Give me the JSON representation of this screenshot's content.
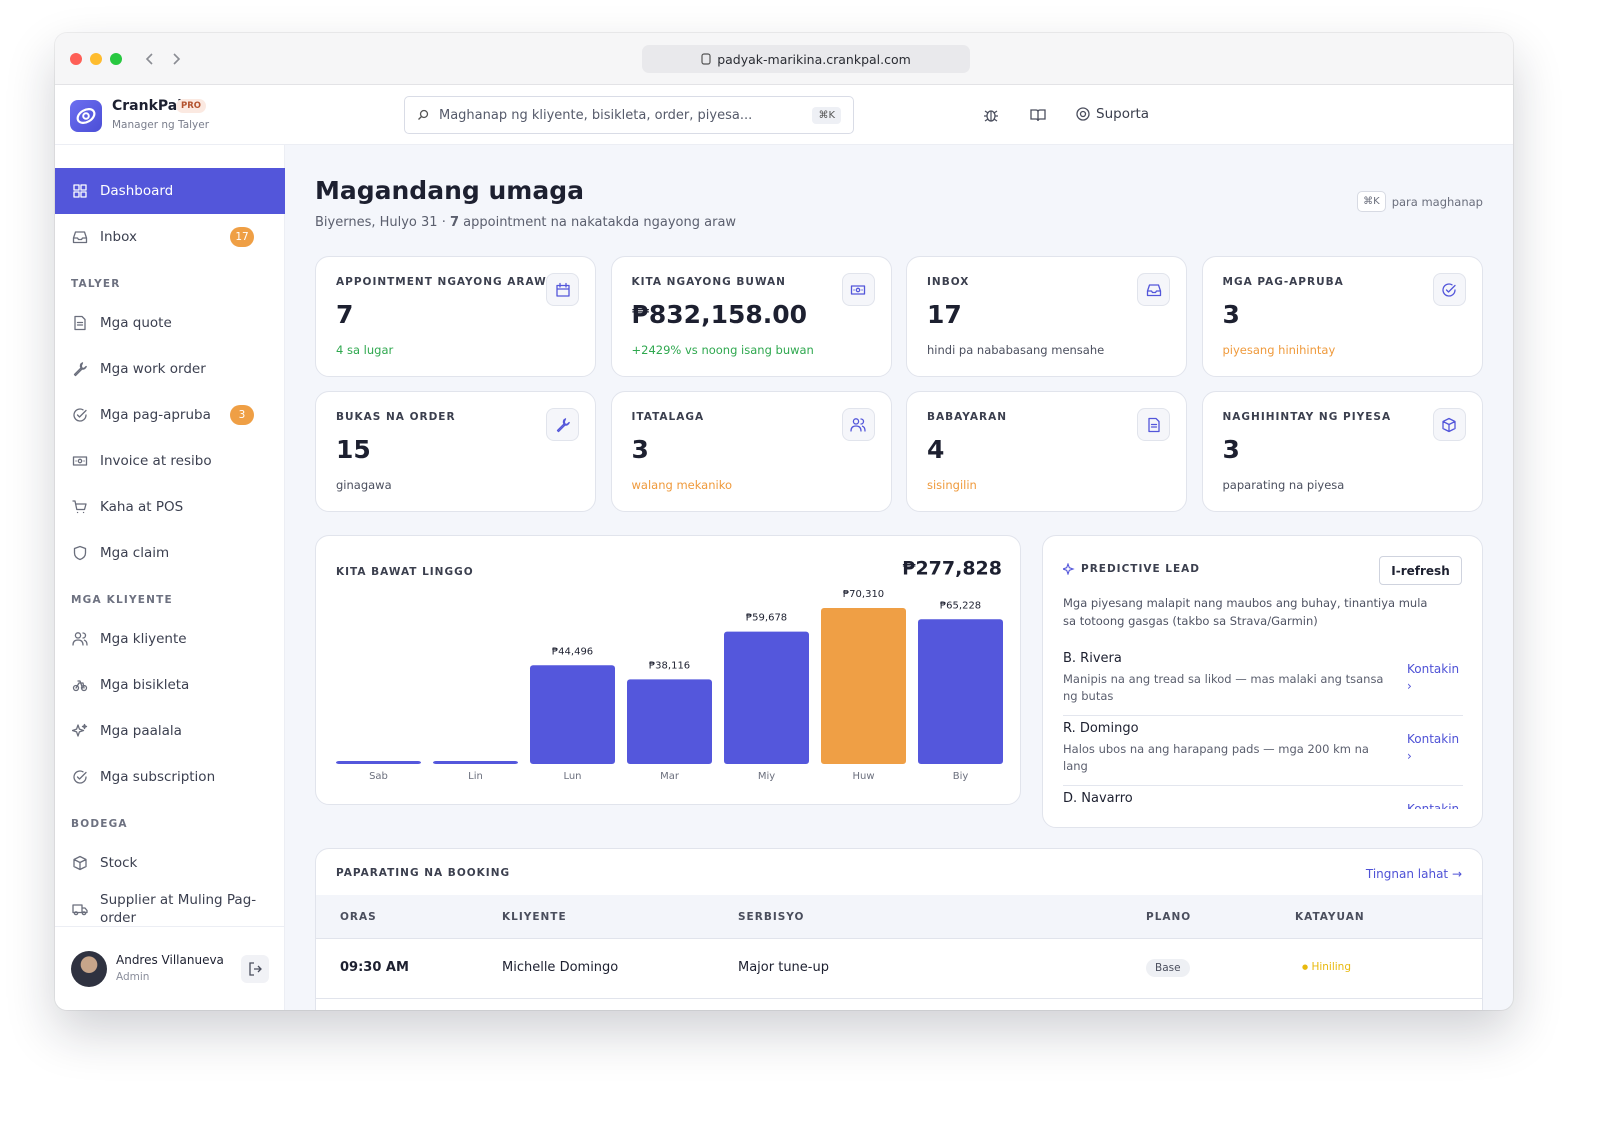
{
  "browser": {
    "url": "padyak-marikina.crankpal.com"
  },
  "brand": {
    "name": "CrankPal",
    "badge": "PRO",
    "subtitle": "Manager ng Talyer"
  },
  "search": {
    "placeholder": "Maghanap ng kliyente, bisikleta, order, piyesa...",
    "shortcut": "⌘K"
  },
  "topbar": {
    "support": "Suporta"
  },
  "sidebar": {
    "main": [
      {
        "label": "Dashboard"
      },
      {
        "label": "Inbox",
        "badge": 17
      }
    ],
    "sections": [
      {
        "title": "TALYER",
        "items": [
          {
            "label": "Mga quote"
          },
          {
            "label": "Mga work order"
          },
          {
            "label": "Mga pag-apruba",
            "badge": 3
          },
          {
            "label": "Invoice at resibo"
          },
          {
            "label": "Kaha at POS"
          },
          {
            "label": "Mga claim"
          }
        ]
      },
      {
        "title": "MGA KLIYENTE",
        "items": [
          {
            "label": "Mga kliyente"
          },
          {
            "label": "Mga bisikleta"
          },
          {
            "label": "Mga paalala"
          },
          {
            "label": "Mga subscription"
          }
        ]
      },
      {
        "title": "BODEGA",
        "items": [
          {
            "label": "Stock"
          },
          {
            "label": "Supplier at Muling Pag-order"
          }
        ]
      }
    ]
  },
  "user": {
    "name": "Andres Villanueva",
    "role": "Admin"
  },
  "header": {
    "title": "Magandang umaga",
    "date": "Biyernes, Hulyo 31 ·",
    "appointments": 7,
    "subtitle": "appointment na nakatakda ngayong araw",
    "shortcut": "⌘K",
    "shortcut_hint": "para maghanap"
  },
  "stats": [
    {
      "label": "APPOINTMENT NGAYONG ARAW",
      "value": 7,
      "note": "4 sa lugar",
      "note_color": "#2fa84f"
    },
    {
      "label": "KITA NGAYONG BUWAN",
      "value": "₱832,158.00",
      "note": "+2429% vs noong isang buwan",
      "note_color": "#2fa84f"
    },
    {
      "label": "INBOX",
      "value": 17,
      "note": "hindi pa nababasang mensahe",
      "note_color": "#4b4f5e"
    },
    {
      "label": "MGA PAG-APRUBA",
      "value": 3,
      "note": "piyesang hinihintay",
      "note_color": "#ef9a3c"
    },
    {
      "label": "BUKAS NA ORDER",
      "value": 15,
      "note": "ginagawa",
      "note_color": "#4b4f5e"
    },
    {
      "label": "ITATALAGA",
      "value": 3,
      "note": "walang mekaniko",
      "note_color": "#ef9a3c"
    },
    {
      "label": "BABAYARAN",
      "value": 4,
      "note": "sisingilin",
      "note_color": "#ef9a3c"
    },
    {
      "label": "NAGHIHINTAY NG PIYESA",
      "value": 3,
      "note": "paparating na piyesa",
      "note_color": "#4b4f5e"
    }
  ],
  "chart_data": {
    "type": "bar",
    "title": "KITA BAWAT LINGGO",
    "total": "₱277,828",
    "categories": [
      "Sab",
      "Lin",
      "Lun",
      "Mar",
      "Miy",
      "Huw",
      "Biy"
    ],
    "values": [
      0,
      0,
      44496,
      38116,
      59678,
      70310,
      65228
    ],
    "value_labels": [
      null,
      null,
      "₱44,496",
      "₱38,116",
      "₱59,678",
      "₱70,310",
      "₱65,228"
    ],
    "colors": [
      "#5457dc",
      "#5457dc",
      "#5457dc",
      "#5457dc",
      "#5457dc",
      "#ef9f45",
      "#5457dc"
    ]
  },
  "predictive": {
    "title": "PREDICTIVE LEAD",
    "button": "I-refresh",
    "description": "Mga piyesang malapit nang maubos ang buhay, tinantiya mula sa totoong gasgas (takbo sa Strava/Garmin)",
    "leads": [
      {
        "name": "B. Rivera",
        "detail": "Manipis na ang tread sa likod — mas malaki ang tsansa ng butas",
        "action": "Kontakin ›"
      },
      {
        "name": "R. Domingo",
        "detail": "Halos ubos na ang harapang pads — mga 200 km na lang",
        "action": "Kontakin ›"
      },
      {
        "name": "D. Navarro",
        "action": "Kontakin ›"
      }
    ]
  },
  "booking": {
    "title": "PAPARATING NA BOOKING",
    "link": "Tingnan lahat →",
    "columns": [
      "ORAS",
      "KLIYENTE",
      "SERBISYO",
      "PLANO",
      "KATAYUAN"
    ],
    "rows": [
      [
        "09:30 AM",
        "Michelle Domingo",
        "Major tune-up",
        "Base",
        "Hiniling"
      ]
    ]
  }
}
